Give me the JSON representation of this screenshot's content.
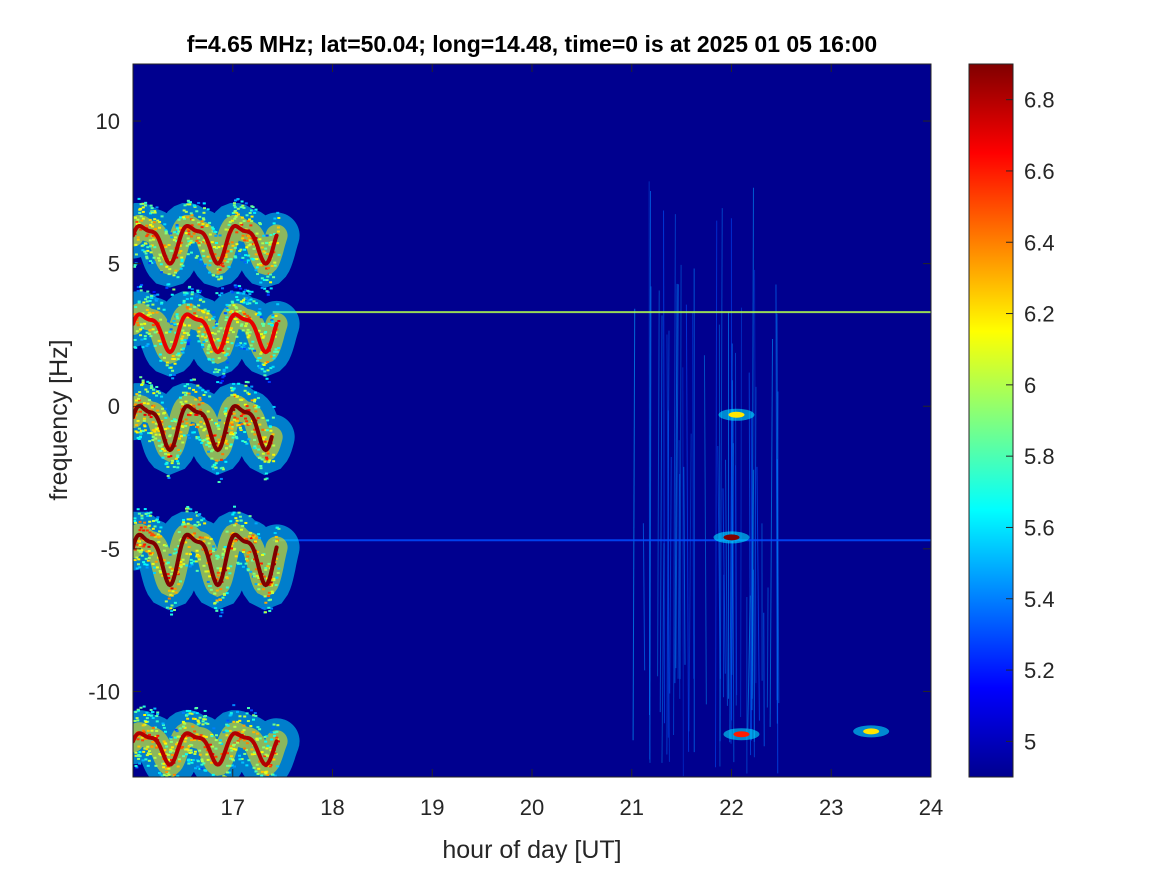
{
  "chart_data": {
    "type": "heatmap",
    "title": "f=4.65 MHz;  lat=50.04; long=14.48, time=0 is at 2025 01 05 16:00",
    "xlabel": "hour of day [UT]",
    "ylabel": "frequency [Hz]",
    "xlim": [
      16.0,
      24.0
    ],
    "ylim": [
      -13.0,
      12.0
    ],
    "x_ticks": [
      17,
      18,
      19,
      20,
      21,
      22,
      23,
      24
    ],
    "x_tick_labels": [
      "17",
      "18",
      "19",
      "20",
      "21",
      "22",
      "23",
      "24"
    ],
    "y_ticks": [
      10,
      5,
      0,
      -5,
      -10
    ],
    "y_tick_labels": [
      "10",
      "5",
      "0",
      "-5",
      "-10"
    ],
    "colorbar": {
      "range": [
        4.9,
        6.9
      ],
      "colormap": "jet",
      "ticks": [
        6.8,
        6.6,
        6.4,
        6.2,
        6.0,
        5.8,
        5.6,
        5.4,
        5.2,
        5.0
      ],
      "tick_labels": [
        "6.8",
        "6.6",
        "6.4",
        "6.2",
        "6",
        "5.8",
        "5.6",
        "5.4",
        "5.2",
        "5"
      ]
    },
    "background_value": 4.9,
    "oscillating_traces": [
      {
        "x_start": 16.0,
        "x_end": 17.45,
        "center_freq": 5.8,
        "amplitude": 0.6,
        "period_hours": 0.48,
        "peak": 6.8
      },
      {
        "x_start": 16.0,
        "x_end": 17.45,
        "center_freq": 2.7,
        "amplitude": 0.6,
        "period_hours": 0.48,
        "peak": 6.7
      },
      {
        "x_start": 16.0,
        "x_end": 17.4,
        "center_freq": -0.6,
        "amplitude": 0.7,
        "period_hours": 0.48,
        "peak": 6.9
      },
      {
        "x_start": 16.0,
        "x_end": 17.45,
        "center_freq": -5.2,
        "amplitude": 0.8,
        "period_hours": 0.48,
        "peak": 6.9
      },
      {
        "x_start": 16.0,
        "x_end": 17.45,
        "center_freq": -11.9,
        "amplitude": 0.5,
        "period_hours": 0.48,
        "peak": 6.8
      }
    ],
    "horizontal_lines": [
      {
        "freq": 3.3,
        "x_start": 17.4,
        "x_end": 24.0,
        "value": 6.0
      },
      {
        "freq": -4.7,
        "x_start": 17.4,
        "x_end": 24.0,
        "value": 5.3
      }
    ],
    "hotspots": [
      {
        "x": 22.0,
        "freq": -4.6,
        "value": 6.9
      },
      {
        "x": 22.05,
        "freq": -0.3,
        "value": 6.2
      },
      {
        "x": 22.1,
        "freq": -11.5,
        "value": 6.6
      },
      {
        "x": 23.4,
        "freq": -11.4,
        "value": 6.2
      }
    ],
    "streak_region": {
      "x_start": 21.0,
      "x_end": 22.5,
      "freq_range": [
        -13.0,
        8.0
      ],
      "value": 5.3
    }
  }
}
